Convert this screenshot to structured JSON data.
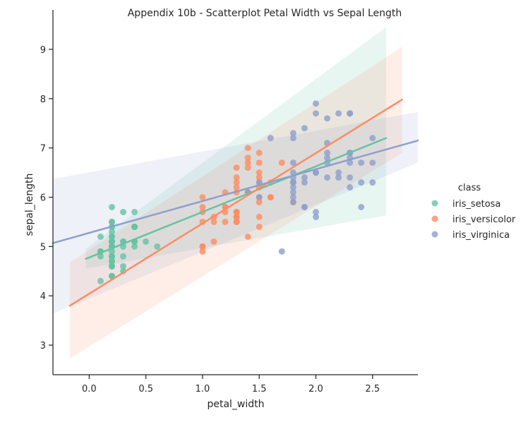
{
  "chart_data": {
    "type": "scatter",
    "title": "Appendix 10b - Scatterplot Petal Width vs Sepal Length",
    "xlabel": "petal_width",
    "ylabel": "sepal_length",
    "xlim": [
      -0.32,
      2.9
    ],
    "ylim": [
      2.4,
      9.8
    ],
    "xticks": [
      "0.0",
      "0.5",
      "1.0",
      "1.5",
      "2.0",
      "2.5"
    ],
    "yticks": [
      "3",
      "4",
      "5",
      "6",
      "7",
      "8",
      "9"
    ],
    "grid": false,
    "legend": {
      "title": "class",
      "placement": "center-right"
    },
    "series": [
      {
        "name": "iris_setosa",
        "color": "#66c2a5",
        "points": [
          [
            0.2,
            5.1
          ],
          [
            0.2,
            4.9
          ],
          [
            0.2,
            4.7
          ],
          [
            0.2,
            4.6
          ],
          [
            0.2,
            5.0
          ],
          [
            0.4,
            5.4
          ],
          [
            0.3,
            4.6
          ],
          [
            0.2,
            5.0
          ],
          [
            0.2,
            4.4
          ],
          [
            0.1,
            4.9
          ],
          [
            0.2,
            5.4
          ],
          [
            0.2,
            4.8
          ],
          [
            0.1,
            4.8
          ],
          [
            0.1,
            4.3
          ],
          [
            0.2,
            5.8
          ],
          [
            0.4,
            5.7
          ],
          [
            0.4,
            5.4
          ],
          [
            0.3,
            5.1
          ],
          [
            0.3,
            5.7
          ],
          [
            0.3,
            5.1
          ],
          [
            0.2,
            5.4
          ],
          [
            0.4,
            5.1
          ],
          [
            0.2,
            4.6
          ],
          [
            0.5,
            5.1
          ],
          [
            0.2,
            4.8
          ],
          [
            0.2,
            5.0
          ],
          [
            0.4,
            5.0
          ],
          [
            0.2,
            5.2
          ],
          [
            0.2,
            5.2
          ],
          [
            0.2,
            4.7
          ],
          [
            0.2,
            4.8
          ],
          [
            0.4,
            5.4
          ],
          [
            0.1,
            5.2
          ],
          [
            0.2,
            5.5
          ],
          [
            0.1,
            4.9
          ],
          [
            0.2,
            5.0
          ],
          [
            0.2,
            5.5
          ],
          [
            0.1,
            4.9
          ],
          [
            0.2,
            4.4
          ],
          [
            0.2,
            5.1
          ],
          [
            0.3,
            5.0
          ],
          [
            0.3,
            4.5
          ],
          [
            0.2,
            4.4
          ],
          [
            0.6,
            5.0
          ],
          [
            0.4,
            5.1
          ],
          [
            0.3,
            4.8
          ],
          [
            0.2,
            5.1
          ],
          [
            0.2,
            4.6
          ],
          [
            0.2,
            5.3
          ],
          [
            0.2,
            5.0
          ]
        ],
        "regression": {
          "x": [
            -0.03,
            2.62
          ],
          "y": [
            4.75,
            7.2
          ],
          "ci_upper": [
            4.95,
            9.45
          ],
          "ci_lower": [
            4.55,
            5.63
          ]
        }
      },
      {
        "name": "iris_versicolor",
        "color": "#fc8d62",
        "points": [
          [
            1.4,
            7.0
          ],
          [
            1.5,
            6.4
          ],
          [
            1.5,
            6.9
          ],
          [
            1.3,
            5.5
          ],
          [
            1.5,
            6.5
          ],
          [
            1.3,
            5.7
          ],
          [
            1.6,
            6.3
          ],
          [
            1.0,
            4.9
          ],
          [
            1.3,
            6.6
          ],
          [
            1.4,
            5.2
          ],
          [
            1.0,
            5.0
          ],
          [
            1.5,
            5.9
          ],
          [
            1.0,
            6.0
          ],
          [
            1.4,
            6.1
          ],
          [
            1.3,
            5.6
          ],
          [
            1.4,
            6.7
          ],
          [
            1.5,
            5.6
          ],
          [
            1.0,
            5.8
          ],
          [
            1.5,
            6.2
          ],
          [
            1.1,
            5.6
          ],
          [
            1.8,
            5.9
          ],
          [
            1.3,
            6.1
          ],
          [
            1.5,
            6.3
          ],
          [
            1.2,
            6.1
          ],
          [
            1.3,
            6.4
          ],
          [
            1.4,
            6.6
          ],
          [
            1.4,
            6.8
          ],
          [
            1.7,
            6.7
          ],
          [
            1.5,
            6.0
          ],
          [
            1.0,
            5.7
          ],
          [
            1.1,
            5.5
          ],
          [
            1.0,
            5.5
          ],
          [
            1.2,
            5.8
          ],
          [
            1.6,
            6.0
          ],
          [
            1.5,
            5.4
          ],
          [
            1.6,
            6.0
          ],
          [
            1.5,
            6.7
          ],
          [
            1.3,
            6.3
          ],
          [
            1.3,
            5.6
          ],
          [
            1.3,
            5.5
          ],
          [
            1.2,
            5.5
          ],
          [
            1.4,
            6.1
          ],
          [
            1.2,
            5.8
          ],
          [
            1.0,
            5.0
          ],
          [
            1.3,
            5.6
          ],
          [
            1.2,
            5.7
          ],
          [
            1.3,
            5.7
          ],
          [
            1.3,
            6.2
          ],
          [
            1.1,
            5.1
          ],
          [
            1.3,
            5.7
          ]
        ],
        "regression": {
          "x": [
            -0.17,
            2.76
          ],
          "y": [
            3.8,
            7.98
          ],
          "ci_upper": [
            4.68,
            9.05
          ],
          "ci_lower": [
            2.73,
            6.9
          ]
        }
      },
      {
        "name": "iris_virginica",
        "color": "#8da0cb",
        "points": [
          [
            2.5,
            6.3
          ],
          [
            1.9,
            5.8
          ],
          [
            2.1,
            7.1
          ],
          [
            1.8,
            6.3
          ],
          [
            2.2,
            6.5
          ],
          [
            2.1,
            7.6
          ],
          [
            1.7,
            4.9
          ],
          [
            1.8,
            7.3
          ],
          [
            1.8,
            6.7
          ],
          [
            2.5,
            7.2
          ],
          [
            2.0,
            6.5
          ],
          [
            1.9,
            6.4
          ],
          [
            2.1,
            6.8
          ],
          [
            2.0,
            5.7
          ],
          [
            2.4,
            5.8
          ],
          [
            2.3,
            6.4
          ],
          [
            1.8,
            6.5
          ],
          [
            2.2,
            7.7
          ],
          [
            2.3,
            7.7
          ],
          [
            1.5,
            6.0
          ],
          [
            2.3,
            6.9
          ],
          [
            2.0,
            5.6
          ],
          [
            2.0,
            7.7
          ],
          [
            1.8,
            6.3
          ],
          [
            2.1,
            6.7
          ],
          [
            1.8,
            7.2
          ],
          [
            1.8,
            6.2
          ],
          [
            1.8,
            6.1
          ],
          [
            2.1,
            6.4
          ],
          [
            1.6,
            7.2
          ],
          [
            1.9,
            7.4
          ],
          [
            2.0,
            7.9
          ],
          [
            2.2,
            6.4
          ],
          [
            1.5,
            6.3
          ],
          [
            1.4,
            6.1
          ],
          [
            2.3,
            7.7
          ],
          [
            2.4,
            6.3
          ],
          [
            1.8,
            6.4
          ],
          [
            1.8,
            6.0
          ],
          [
            2.1,
            6.9
          ],
          [
            2.4,
            6.7
          ],
          [
            2.3,
            6.9
          ],
          [
            1.9,
            5.8
          ],
          [
            2.3,
            6.8
          ],
          [
            2.5,
            6.7
          ],
          [
            2.3,
            6.7
          ],
          [
            1.9,
            6.3
          ],
          [
            2.0,
            6.5
          ],
          [
            2.3,
            6.2
          ],
          [
            1.8,
            5.9
          ]
        ],
        "regression": {
          "x": [
            -0.32,
            2.9
          ],
          "y": [
            5.07,
            7.15
          ],
          "ci_upper": [
            6.37,
            7.73
          ],
          "ci_lower": [
            3.64,
            6.7
          ]
        }
      }
    ]
  }
}
